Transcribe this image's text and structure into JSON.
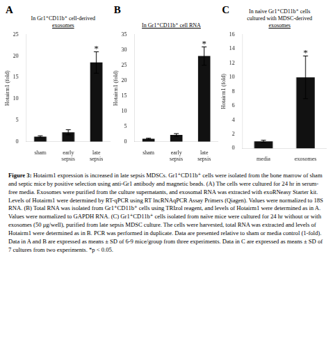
{
  "chart_data": [
    {
      "type": "bar",
      "label": "A",
      "title": "In Gr1⁺CD11b⁺ cell-derived\nexosomes",
      "categories": [
        "sham",
        "early\nsepsis",
        "late\nsepsis"
      ],
      "values": [
        1.2,
        2.2,
        18.5
      ],
      "errors": [
        0.2,
        0.6,
        2.5
      ],
      "ylim": [
        0,
        25
      ],
      "yticks": [
        0,
        5,
        10,
        15,
        20,
        25
      ],
      "ylabel": "Hotairm1 (fold)",
      "annotations": [
        {
          "text": "*",
          "category": "late\nsepsis"
        }
      ],
      "color": "#111111",
      "grid": false
    },
    {
      "type": "bar",
      "label": "B",
      "title": "In Gr1⁺CD11b⁺ cell RNA",
      "categories": [
        "sham",
        "early\nsepsis",
        "late\nsepsis"
      ],
      "values": [
        1.0,
        2.2,
        28.0
      ],
      "errors": [
        0.15,
        0.45,
        3.0
      ],
      "ylim": [
        0,
        35
      ],
      "yticks": [
        0,
        5,
        10,
        15,
        20,
        25,
        30,
        35
      ],
      "ylabel": "Hotairm1 (fold)",
      "annotations": [
        {
          "text": "*",
          "category": "late\nsepsis"
        }
      ],
      "color": "#111111",
      "grid": false
    },
    {
      "type": "bar",
      "label": "C",
      "title": "In naïve Gr1⁺CD11b⁺ cells\ncultured with MDSC-derived\nexosomes",
      "categories": [
        "media",
        "exosomes"
      ],
      "values": [
        1.0,
        10.0
      ],
      "errors": [
        0.15,
        3.0
      ],
      "ylim": [
        0,
        16
      ],
      "yticks": [
        0,
        2,
        4,
        6,
        8,
        10,
        12,
        14,
        16
      ],
      "ylabel": "Hotairm1 (fold)",
      "annotations": [
        {
          "text": "*",
          "category": "exosomes"
        }
      ],
      "color": "#111111",
      "grid": false
    }
  ],
  "caption_title": "Figure 3:",
  "caption": "Hotairm1 expression is increased in late sepsis MDSCs. Gr1⁺CD11b⁺ cells were isolated from the bone marrow of sham and septic mice by positive selection using anti-Gr1 antibody and magnetic beads. (A) The cells were cultured for 24 hr in serum-free media. Exosomes were purified from the culture supernatants, and exosomal RNA was extracted with exoRNeasy Starter kit. Levels of Hotairm1 were determined by RT-qPCR using RT lncRNAqPCR Assay Primers (Qiagen). Values were normalized to 18S RNA. (B) Total RNA was isolated from Gr1⁺CD11b⁺ cells using TRIzol reagent, and levels of Hotairm1 were determined as in A. Values were normalized to GAPDH RNA. (C) Gr1⁺CD11b⁺ cells isolated from naïve mice were cultured for 24 hr without or with exosomes (50 μg/well), purified from late sepsis MDSC culture. The cells were harvested, total RNA was extracted and levels of Hotairm1 were determined as in B. PCR was performed in duplicate. Data are presented relative to sham or media control (1-fold). Data in A and B are expressed as means ± SD of 6-9 mice/group from three experiments. Data in C are expressed as means ± SD of 7 cultures from two experiments. *p < 0.05."
}
